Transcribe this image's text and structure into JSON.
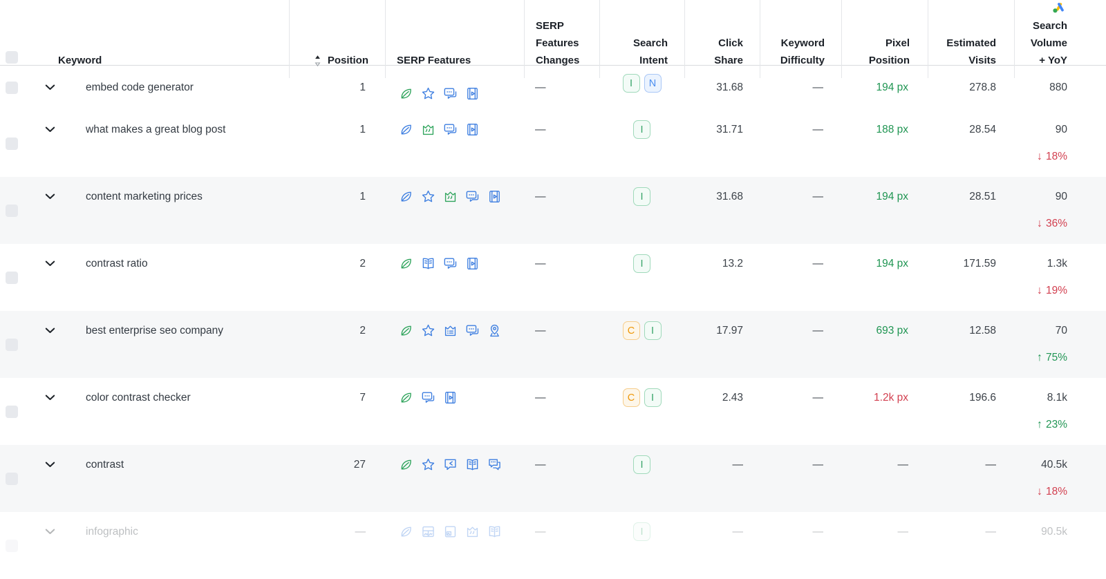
{
  "header": {
    "columns": [
      {
        "label": "Keyword"
      },
      {
        "label": "Position",
        "sorted": true
      },
      {
        "label": "SERP Features"
      },
      {
        "label": "SERP Features Changes"
      },
      {
        "label": "Search Intent"
      },
      {
        "label": "Click Share"
      },
      {
        "label": "Keyword Difficulty"
      },
      {
        "label": "Pixel Position"
      },
      {
        "label": "Estimated Visits"
      },
      {
        "label": "Search Volume + YoY",
        "icon": "google-ads"
      }
    ]
  },
  "intent_types": {
    "I": "informational",
    "N": "navigational",
    "C": "commercial"
  },
  "colors": {
    "icon_blue": "#3d7ee0",
    "icon_green": "#2fa45c",
    "positive_green": "#229655",
    "negative_red": "#d23f4f",
    "intent_informational": "#35a367",
    "intent_navigational": "#4a8df0",
    "intent_commercial": "#ee9709"
  },
  "rows": [
    {
      "keyword": "embed code generator",
      "position": "1",
      "serp_features": [
        {
          "name": "leaf",
          "tone": "green"
        },
        {
          "name": "star",
          "tone": "blue"
        },
        {
          "name": "faq",
          "tone": "blue"
        },
        {
          "name": "video",
          "tone": "blue"
        }
      ],
      "serp_changes": "—",
      "intents": [
        "I",
        "N"
      ],
      "click_share": "31.68",
      "keyword_difficulty": "—",
      "pixel_position": {
        "text": "194 px",
        "status": "good"
      },
      "estimated_visits": "278.8",
      "search_volume": "880",
      "yoy": null,
      "shaded": false,
      "short": true,
      "faded": false
    },
    {
      "keyword": "what makes a great blog post",
      "position": "1",
      "serp_features": [
        {
          "name": "leaf",
          "tone": "blue"
        },
        {
          "name": "featured-snippet",
          "tone": "green"
        },
        {
          "name": "faq",
          "tone": "blue"
        },
        {
          "name": "video",
          "tone": "blue"
        }
      ],
      "serp_changes": "—",
      "intents": [
        "I"
      ],
      "click_share": "31.71",
      "keyword_difficulty": "—",
      "pixel_position": {
        "text": "188 px",
        "status": "good"
      },
      "estimated_visits": "28.54",
      "search_volume": "90",
      "yoy": {
        "direction": "down",
        "percent": "18%"
      },
      "shaded": false,
      "short": false,
      "faded": false
    },
    {
      "keyword": "content marketing prices",
      "position": "1",
      "serp_features": [
        {
          "name": "leaf",
          "tone": "blue"
        },
        {
          "name": "star",
          "tone": "blue"
        },
        {
          "name": "featured-snippet",
          "tone": "green"
        },
        {
          "name": "faq",
          "tone": "blue"
        },
        {
          "name": "video",
          "tone": "blue"
        }
      ],
      "serp_changes": "—",
      "intents": [
        "I"
      ],
      "click_share": "31.68",
      "keyword_difficulty": "—",
      "pixel_position": {
        "text": "194 px",
        "status": "good"
      },
      "estimated_visits": "28.51",
      "search_volume": "90",
      "yoy": {
        "direction": "down",
        "percent": "36%"
      },
      "shaded": true,
      "short": false,
      "faded": false
    },
    {
      "keyword": "contrast ratio",
      "position": "2",
      "serp_features": [
        {
          "name": "leaf",
          "tone": "green"
        },
        {
          "name": "book",
          "tone": "blue"
        },
        {
          "name": "faq",
          "tone": "blue"
        },
        {
          "name": "video",
          "tone": "blue"
        }
      ],
      "serp_changes": "—",
      "intents": [
        "I"
      ],
      "click_share": "13.2",
      "keyword_difficulty": "—",
      "pixel_position": {
        "text": "194 px",
        "status": "good"
      },
      "estimated_visits": "171.59",
      "search_volume": "1.3k",
      "yoy": {
        "direction": "down",
        "percent": "19%"
      },
      "shaded": false,
      "short": false,
      "faded": false
    },
    {
      "keyword": "best enterprise seo company",
      "position": "2",
      "serp_features": [
        {
          "name": "leaf",
          "tone": "green"
        },
        {
          "name": "star",
          "tone": "blue"
        },
        {
          "name": "carousel",
          "tone": "blue"
        },
        {
          "name": "faq",
          "tone": "blue"
        },
        {
          "name": "local-pack",
          "tone": "blue"
        }
      ],
      "serp_changes": "—",
      "intents": [
        "C",
        "I"
      ],
      "click_share": "17.97",
      "keyword_difficulty": "—",
      "pixel_position": {
        "text": "693 px",
        "status": "good"
      },
      "estimated_visits": "12.58",
      "search_volume": "70",
      "yoy": {
        "direction": "up",
        "percent": "75%"
      },
      "shaded": true,
      "short": false,
      "faded": false
    },
    {
      "keyword": "color contrast checker",
      "position": "7",
      "serp_features": [
        {
          "name": "leaf",
          "tone": "green"
        },
        {
          "name": "faq",
          "tone": "blue"
        },
        {
          "name": "video",
          "tone": "blue"
        }
      ],
      "serp_changes": "—",
      "intents": [
        "C",
        "I"
      ],
      "click_share": "2.43",
      "keyword_difficulty": "—",
      "pixel_position": {
        "text": "1.2k px",
        "status": "bad"
      },
      "estimated_visits": "196.6",
      "search_volume": "8.1k",
      "yoy": {
        "direction": "up",
        "percent": "23%"
      },
      "shaded": false,
      "short": false,
      "faded": false
    },
    {
      "keyword": "contrast",
      "position": "27",
      "serp_features": [
        {
          "name": "leaf",
          "tone": "green"
        },
        {
          "name": "star",
          "tone": "blue"
        },
        {
          "name": "reply-bubble",
          "tone": "blue"
        },
        {
          "name": "book",
          "tone": "blue"
        },
        {
          "name": "chat-double",
          "tone": "blue"
        }
      ],
      "serp_changes": "—",
      "intents": [
        "I"
      ],
      "click_share": "—",
      "keyword_difficulty": "—",
      "pixel_position": {
        "text": "—",
        "status": "none"
      },
      "estimated_visits": "—",
      "search_volume": "40.5k",
      "yoy": {
        "direction": "down",
        "percent": "18%"
      },
      "shaded": true,
      "short": false,
      "faded": false
    },
    {
      "keyword": "infographic",
      "position": "—",
      "serp_features": [
        {
          "name": "leaf",
          "tone": "blue"
        },
        {
          "name": "image-pack",
          "tone": "blue"
        },
        {
          "name": "image",
          "tone": "blue"
        },
        {
          "name": "featured-snippet",
          "tone": "blue"
        },
        {
          "name": "book",
          "tone": "blue"
        }
      ],
      "serp_changes": "—",
      "intents": [
        "I"
      ],
      "click_share": "—",
      "keyword_difficulty": "—",
      "pixel_position": {
        "text": "—",
        "status": "none"
      },
      "estimated_visits": "—",
      "search_volume": "90.5k",
      "yoy": null,
      "shaded": false,
      "short": false,
      "faded": true
    }
  ]
}
